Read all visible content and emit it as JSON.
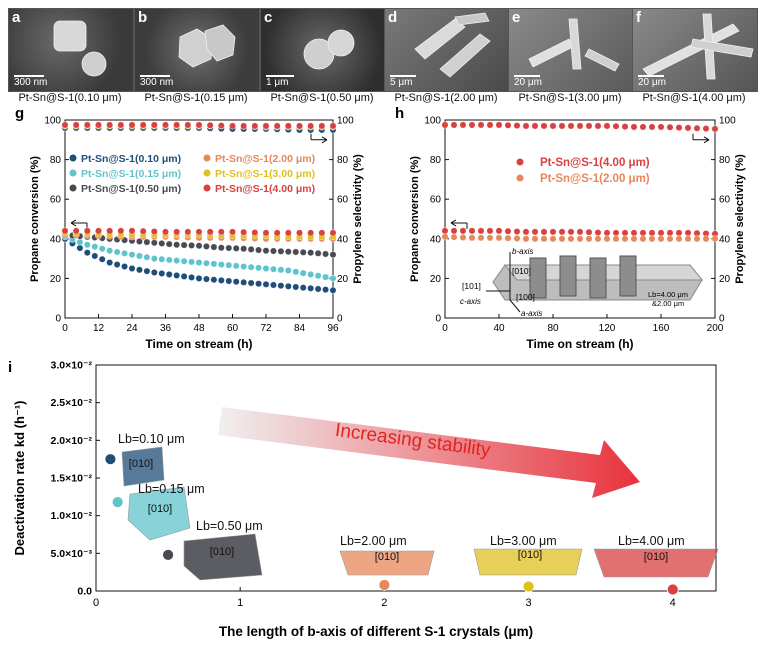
{
  "sem_panels": [
    {
      "letter": "a",
      "scale": "300 nm",
      "caption": "Pt-Sn@S-1(0.10 μm)"
    },
    {
      "letter": "b",
      "scale": "300 nm",
      "caption": "Pt-Sn@S-1(0.15 μm)"
    },
    {
      "letter": "c",
      "scale": "1 μm",
      "caption": "Pt-Sn@S-1(0.50 μm)"
    },
    {
      "letter": "d",
      "scale": "5 μm",
      "caption": "Pt-Sn@S-1(2.00 μm)"
    },
    {
      "letter": "e",
      "scale": "20 μm",
      "caption": "Pt-Sn@S-1(3.00 μm)"
    },
    {
      "letter": "f",
      "scale": "20 μm",
      "caption": "Pt-Sn@S-1(4.00 μm)"
    }
  ],
  "colors": {
    "s010": "#1f4e79",
    "s015": "#5fc4cc",
    "s050": "#4a4a52",
    "s200": "#e8875a",
    "s300": "#e0c020",
    "s400": "#d94040"
  },
  "chart_data": [
    {
      "panel": "g",
      "type": "scatter",
      "xlabel": "Time on stream (h)",
      "ylabel": "Propane conversion (%)",
      "y2label": "Propylene selectivity (%)",
      "xlim": [
        0,
        96
      ],
      "ylim": [
        0,
        100
      ],
      "xticks": [
        0,
        12,
        24,
        36,
        48,
        60,
        72,
        84,
        96
      ],
      "yticks": [
        0,
        20,
        40,
        60,
        80,
        100
      ],
      "legend": [
        {
          "name": "Pt-Sn@S-1(0.10 μm)",
          "color": "s010"
        },
        {
          "name": "Pt-Sn@S-1(0.15 μm)",
          "color": "s015"
        },
        {
          "name": "Pt-Sn@S-1(0.50 μm)",
          "color": "s050"
        },
        {
          "name": "Pt-Sn@S-1(2.00 μm)",
          "color": "s200"
        },
        {
          "name": "Pt-Sn@S-1(3.00 μm)",
          "color": "s300"
        },
        {
          "name": "Pt-Sn@S-1(4.00 μm)",
          "color": "s400"
        }
      ],
      "series": [
        {
          "name": "Pt-Sn@S-1(0.10 μm)",
          "color": "s010",
          "kind": "conversion",
          "x": [
            0,
            8,
            16,
            24,
            32,
            40,
            48,
            56,
            64,
            72,
            80,
            88,
            96
          ],
          "y": [
            40,
            33,
            28,
            25,
            23,
            21.5,
            20,
            19,
            18,
            17,
            16,
            15,
            14
          ]
        },
        {
          "name": "Pt-Sn@S-1(0.15 μm)",
          "color": "s015",
          "kind": "conversion",
          "x": [
            0,
            8,
            16,
            24,
            32,
            40,
            48,
            56,
            64,
            72,
            80,
            88,
            96
          ],
          "y": [
            41,
            37,
            34,
            32,
            30,
            29,
            28,
            27,
            26,
            25,
            24,
            22,
            20
          ]
        },
        {
          "name": "Pt-Sn@S-1(0.50 μm)",
          "color": "s050",
          "kind": "conversion",
          "x": [
            0,
            8,
            16,
            24,
            32,
            40,
            48,
            56,
            64,
            72,
            80,
            88,
            96
          ],
          "y": [
            42,
            41,
            40,
            39,
            38,
            37,
            36.5,
            35.5,
            35,
            34,
            33.5,
            33,
            32
          ]
        },
        {
          "name": "Pt-Sn@S-1(2.00 μm)",
          "color": "s200",
          "kind": "conversion",
          "x": [
            0,
            12,
            24,
            36,
            48,
            60,
            72,
            84,
            96
          ],
          "y": [
            42,
            41.5,
            41,
            41,
            40.5,
            40.5,
            40,
            40,
            40
          ]
        },
        {
          "name": "Pt-Sn@S-1(3.00 μm)",
          "color": "s300",
          "kind": "conversion",
          "x": [
            0,
            12,
            24,
            36,
            48,
            60,
            72,
            84,
            96
          ],
          "y": [
            43,
            42.5,
            42,
            42,
            42,
            41.5,
            41.5,
            41,
            41
          ]
        },
        {
          "name": "Pt-Sn@S-1(4.00 μm)",
          "color": "s400",
          "kind": "conversion",
          "x": [
            0,
            12,
            24,
            36,
            48,
            60,
            72,
            84,
            96
          ],
          "y": [
            44,
            44,
            44,
            43.5,
            43.5,
            43.5,
            43,
            43,
            43
          ]
        },
        {
          "name": "Pt-Sn@S-1(0.10 μm)",
          "color": "s010",
          "kind": "selectivity",
          "x": [
            0,
            12,
            24,
            36,
            48,
            60,
            72,
            84,
            96
          ],
          "y": [
            96,
            96,
            96,
            96,
            96,
            95.5,
            95.5,
            95,
            95
          ]
        },
        {
          "name": "Pt-Sn@S-1(3.00 μm)",
          "color": "s300",
          "kind": "selectivity",
          "x": [
            0,
            12,
            24,
            36,
            48,
            60,
            72,
            84,
            96
          ],
          "y": [
            97,
            97,
            97,
            97,
            97,
            97,
            96.5,
            96.5,
            96.5
          ]
        },
        {
          "name": "Pt-Sn@S-1(4.00 μm)",
          "color": "s400",
          "kind": "selectivity",
          "x": [
            0,
            12,
            24,
            36,
            48,
            60,
            72,
            84,
            96
          ],
          "y": [
            97.5,
            97.5,
            97.5,
            97.5,
            97.5,
            97,
            97,
            97,
            97
          ]
        }
      ]
    },
    {
      "panel": "h",
      "type": "scatter",
      "xlabel": "Time on stream (h)",
      "ylabel": "Propane conversion (%)",
      "y2label": "Propylene selectivity (%)",
      "xlim": [
        0,
        200
      ],
      "ylim": [
        0,
        100
      ],
      "xticks": [
        0,
        40,
        80,
        120,
        160,
        200
      ],
      "yticks": [
        0,
        20,
        40,
        60,
        80,
        100
      ],
      "legend": [
        {
          "name": "Pt-Sn@S-1(4.00 μm)",
          "color": "s400"
        },
        {
          "name": "Pt-Sn@S-1(2.00 μm)",
          "color": "s200"
        }
      ],
      "inset": {
        "labels": [
          "b-axis",
          "[010]",
          "[101]",
          "c-axis",
          "[100]",
          "a-axis",
          "Lb=4.00 μm",
          "&2.00 μm"
        ]
      },
      "series": [
        {
          "name": "Pt-Sn@S-1(4.00 μm)",
          "color": "s400",
          "kind": "conversion",
          "x": [
            0,
            20,
            40,
            60,
            80,
            100,
            120,
            140,
            160,
            180,
            200
          ],
          "y": [
            44,
            44,
            44,
            43.5,
            43.5,
            43.5,
            43,
            43,
            43,
            43,
            42.5
          ]
        },
        {
          "name": "Pt-Sn@S-1(2.00 μm)",
          "color": "s200",
          "kind": "conversion",
          "x": [
            0,
            20,
            40,
            60,
            80,
            100,
            120,
            140,
            160,
            180,
            200
          ],
          "y": [
            41,
            40.5,
            40.5,
            40,
            40,
            40,
            40,
            40,
            40,
            40,
            40
          ]
        },
        {
          "name": "Pt-Sn@S-1(4.00 μm)",
          "color": "s400",
          "kind": "selectivity",
          "x": [
            0,
            20,
            40,
            60,
            80,
            100,
            120,
            140,
            160,
            180,
            200
          ],
          "y": [
            97.5,
            97.5,
            97.5,
            97,
            97,
            97,
            97,
            96.5,
            96.5,
            96,
            95.5
          ]
        }
      ]
    },
    {
      "panel": "i",
      "type": "scatter",
      "xlabel": "The length of b-axis of different S-1 crystals (μm)",
      "ylabel": "Deactivation rate kd (h⁻¹)",
      "xlim": [
        0,
        4.3
      ],
      "ylim": [
        0,
        0.03
      ],
      "xticks": [
        0,
        1,
        2,
        3,
        4
      ],
      "yticks": [
        "0.0",
        "5.0×10⁻³",
        "1.0×10⁻²",
        "1.5×10⁻²",
        "2.0×10⁻²",
        "2.5×10⁻²",
        "3.0×10⁻²"
      ],
      "arrow_label": "Increasing stability",
      "points": [
        {
          "x": 0.1,
          "y": 0.0175,
          "color": "s010",
          "label": "Lb=0.10 μm",
          "facet": "[010]"
        },
        {
          "x": 0.15,
          "y": 0.0118,
          "color": "s015",
          "label": "Lb=0.15 μm",
          "facet": "[010]"
        },
        {
          "x": 0.5,
          "y": 0.0048,
          "color": "s050",
          "label": "Lb=0.50 μm",
          "facet": "[010]"
        },
        {
          "x": 2.0,
          "y": 0.0008,
          "color": "s200",
          "label": "Lb=2.00 μm",
          "facet": "[010]"
        },
        {
          "x": 3.0,
          "y": 0.0006,
          "color": "s300",
          "label": "Lb=3.00 μm",
          "facet": "[010]"
        },
        {
          "x": 4.0,
          "y": 0.0002,
          "color": "s400",
          "label": "Lb=4.00 μm",
          "facet": "[010]"
        }
      ]
    }
  ]
}
